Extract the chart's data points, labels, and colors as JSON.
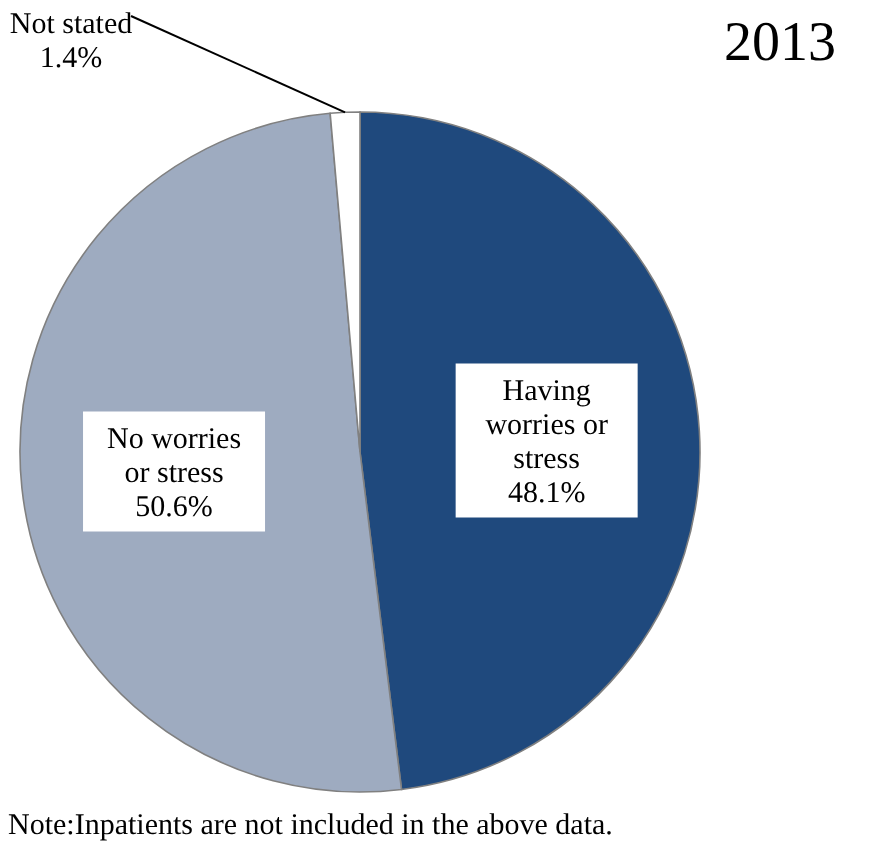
{
  "chart_data": {
    "type": "pie",
    "title": "2013",
    "categories": [
      "Having worries or stress",
      "No worries or stress",
      "Not stated"
    ],
    "values": [
      48.1,
      50.6,
      1.4
    ],
    "value_labels": [
      "48.1%",
      "50.6%",
      "1.4%"
    ],
    "colors": [
      "#1f497d",
      "#9eabc0",
      "#ffffff"
    ],
    "annotations": [
      "Note:Inpatients are not included in the above data."
    ]
  }
}
